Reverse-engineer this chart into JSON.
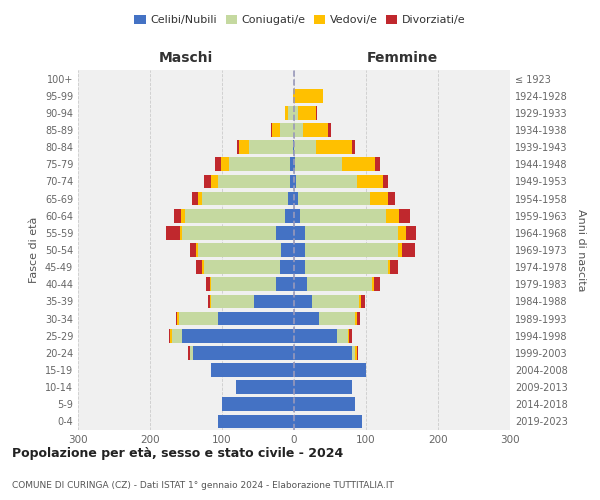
{
  "age_groups": [
    "0-4",
    "5-9",
    "10-14",
    "15-19",
    "20-24",
    "25-29",
    "30-34",
    "35-39",
    "40-44",
    "45-49",
    "50-54",
    "55-59",
    "60-64",
    "65-69",
    "70-74",
    "75-79",
    "80-84",
    "85-89",
    "90-94",
    "95-99",
    "100+"
  ],
  "birth_years": [
    "2019-2023",
    "2014-2018",
    "2009-2013",
    "2004-2008",
    "1999-2003",
    "1994-1998",
    "1989-1993",
    "1984-1988",
    "1979-1983",
    "1974-1978",
    "1969-1973",
    "1964-1968",
    "1959-1963",
    "1954-1958",
    "1949-1953",
    "1944-1948",
    "1939-1943",
    "1934-1938",
    "1929-1933",
    "1924-1928",
    "≤ 1923"
  ],
  "maschi": {
    "celibi": [
      105,
      100,
      80,
      115,
      140,
      155,
      105,
      55,
      25,
      20,
      18,
      25,
      12,
      8,
      5,
      5,
      2,
      0,
      0,
      0,
      0
    ],
    "coniugati": [
      0,
      0,
      0,
      0,
      5,
      15,
      55,
      60,
      90,
      105,
      115,
      130,
      140,
      120,
      100,
      85,
      60,
      20,
      8,
      0,
      0
    ],
    "vedovi": [
      0,
      0,
      0,
      0,
      0,
      2,
      2,
      2,
      2,
      3,
      3,
      3,
      5,
      5,
      10,
      12,
      15,
      10,
      5,
      2,
      0
    ],
    "divorziati": [
      0,
      0,
      0,
      0,
      2,
      2,
      2,
      3,
      5,
      8,
      8,
      20,
      10,
      8,
      10,
      8,
      2,
      2,
      0,
      0,
      0
    ]
  },
  "femmine": {
    "nubili": [
      95,
      85,
      80,
      100,
      80,
      60,
      35,
      25,
      18,
      15,
      15,
      15,
      8,
      5,
      3,
      2,
      0,
      0,
      0,
      0,
      0
    ],
    "coniugate": [
      0,
      0,
      0,
      0,
      5,
      15,
      50,
      65,
      90,
      115,
      130,
      130,
      120,
      100,
      85,
      65,
      30,
      12,
      5,
      0,
      0
    ],
    "vedove": [
      0,
      0,
      0,
      0,
      2,
      2,
      3,
      3,
      3,
      3,
      5,
      10,
      18,
      25,
      35,
      45,
      50,
      35,
      25,
      40,
      0
    ],
    "divorziate": [
      0,
      0,
      0,
      0,
      2,
      3,
      3,
      5,
      8,
      12,
      18,
      15,
      15,
      10,
      8,
      8,
      5,
      5,
      2,
      0,
      0
    ]
  },
  "colors": {
    "celibi": "#4472c4",
    "coniugati": "#c5d9a0",
    "vedovi": "#ffc000",
    "divorziati": "#c0282d"
  },
  "xlim": 300,
  "title": "Popolazione per età, sesso e stato civile - 2024",
  "subtitle": "COMUNE DI CURINGA (CZ) - Dati ISTAT 1° gennaio 2024 - Elaborazione TUTTITALIA.IT",
  "ylabel_left": "Fasce di età",
  "ylabel_right": "Anni di nascita",
  "xlabel_left": "Maschi",
  "xlabel_right": "Femmine",
  "bg_color": "#f0f0f0"
}
